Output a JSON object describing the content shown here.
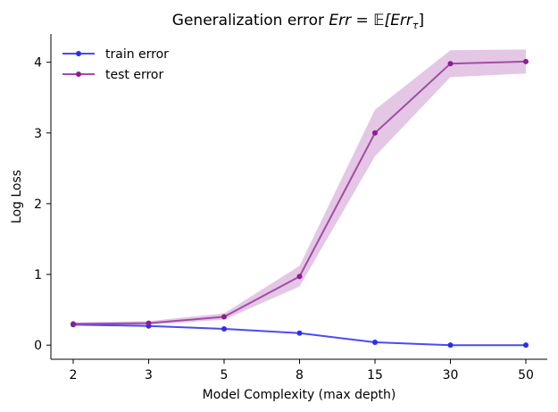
{
  "chart_data": {
    "type": "line",
    "title_prefix": "Generalization error ",
    "title_math": "Err = 𝔼[Err",
    "title_subscript": "τ",
    "title_close": "]",
    "xlabel": "Model Complexity (max depth)",
    "ylabel": "Log Loss",
    "categories": [
      "2",
      "3",
      "5",
      "8",
      "15",
      "30",
      "50"
    ],
    "ylim": [
      -0.2,
      4.4
    ],
    "yticks": [
      0,
      1,
      2,
      3,
      4
    ],
    "grid": false,
    "legend_position": "top-left",
    "series": [
      {
        "name": "train error",
        "color": "#4b4bf0",
        "marker_color": "#2d2df0",
        "values": [
          0.29,
          0.27,
          0.23,
          0.17,
          0.04,
          0.0,
          0.0
        ]
      },
      {
        "name": "test error",
        "color": "#a54aa9",
        "marker_color": "#8b1e92",
        "band_color": "#e3c7e5",
        "values": [
          0.3,
          0.31,
          0.4,
          0.97,
          3.0,
          3.98,
          4.01
        ],
        "band_lower": [
          0.28,
          0.29,
          0.36,
          0.83,
          2.67,
          3.79,
          3.84
        ],
        "band_upper": [
          0.32,
          0.34,
          0.45,
          1.12,
          3.33,
          4.17,
          4.18
        ]
      }
    ]
  }
}
